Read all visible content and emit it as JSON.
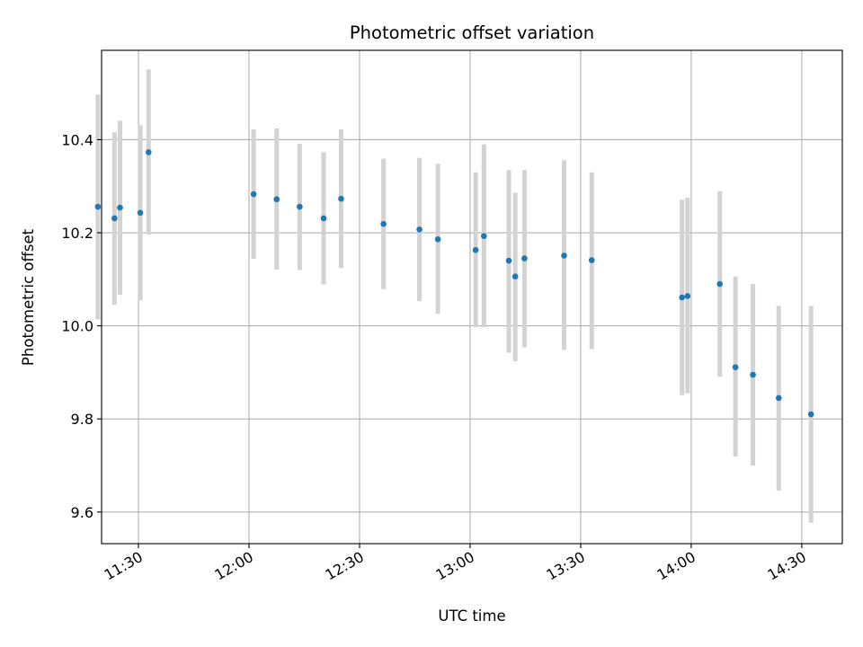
{
  "chart_data": {
    "type": "scatter",
    "title": "Photometric offset variation",
    "xlabel": "UTC time",
    "ylabel": "Photometric offset",
    "x_axis_type": "time",
    "xlim": [
      "11:20",
      "14:41"
    ],
    "ylim": [
      9.532,
      10.592
    ],
    "x_ticks": [
      "11:30",
      "12:00",
      "12:30",
      "13:00",
      "13:30",
      "14:00",
      "14:30"
    ],
    "y_ticks": [
      "9.6",
      "9.8",
      "10.0",
      "10.2",
      "10.4"
    ],
    "grid": true,
    "colors": {
      "point": "#1f77b4",
      "error_bar": "#d3d3d3",
      "grid": "#b0b0b0",
      "axes": "#000000"
    },
    "points": [
      {
        "x": "11:19:00",
        "y": 10.256,
        "y_low": 10.014,
        "y_high": 10.497
      },
      {
        "x": "11:23:30",
        "y": 10.231,
        "y_low": 10.045,
        "y_high": 10.416
      },
      {
        "x": "11:25:00",
        "y": 10.254,
        "y_low": 10.067,
        "y_high": 10.441
      },
      {
        "x": "11:30:30",
        "y": 10.243,
        "y_low": 10.055,
        "y_high": 10.431
      },
      {
        "x": "11:32:45",
        "y": 10.373,
        "y_low": 10.196,
        "y_high": 10.551
      },
      {
        "x": "12:01:15",
        "y": 10.283,
        "y_low": 10.144,
        "y_high": 10.422
      },
      {
        "x": "12:07:30",
        "y": 10.272,
        "y_low": 10.121,
        "y_high": 10.424
      },
      {
        "x": "12:13:45",
        "y": 10.256,
        "y_low": 10.12,
        "y_high": 10.391
      },
      {
        "x": "12:20:15",
        "y": 10.231,
        "y_low": 10.089,
        "y_high": 10.373
      },
      {
        "x": "12:25:00",
        "y": 10.273,
        "y_low": 10.124,
        "y_high": 10.422
      },
      {
        "x": "12:36:30",
        "y": 10.219,
        "y_low": 10.079,
        "y_high": 10.359
      },
      {
        "x": "12:46:15",
        "y": 10.207,
        "y_low": 10.053,
        "y_high": 10.361
      },
      {
        "x": "12:51:15",
        "y": 10.186,
        "y_low": 10.026,
        "y_high": 10.348
      },
      {
        "x": "13:01:30",
        "y": 10.163,
        "y_low": 9.997,
        "y_high": 10.33
      },
      {
        "x": "13:03:45",
        "y": 10.193,
        "y_low": 9.997,
        "y_high": 10.39
      },
      {
        "x": "13:10:30",
        "y": 10.14,
        "y_low": 9.942,
        "y_high": 10.335
      },
      {
        "x": "13:12:15",
        "y": 10.106,
        "y_low": 9.924,
        "y_high": 10.286
      },
      {
        "x": "13:14:45",
        "y": 10.145,
        "y_low": 9.954,
        "y_high": 10.335
      },
      {
        "x": "13:25:30",
        "y": 10.151,
        "y_low": 9.948,
        "y_high": 10.356
      },
      {
        "x": "13:33:00",
        "y": 10.141,
        "y_low": 9.95,
        "y_high": 10.33
      },
      {
        "x": "13:57:30",
        "y": 10.061,
        "y_low": 9.851,
        "y_high": 10.271
      },
      {
        "x": "13:59:00",
        "y": 10.064,
        "y_low": 9.855,
        "y_high": 10.275
      },
      {
        "x": "14:07:45",
        "y": 10.09,
        "y_low": 9.891,
        "y_high": 10.289
      },
      {
        "x": "14:12:00",
        "y": 9.911,
        "y_low": 9.719,
        "y_high": 10.106
      },
      {
        "x": "14:16:45",
        "y": 9.895,
        "y_low": 9.7,
        "y_high": 10.09
      },
      {
        "x": "14:23:45",
        "y": 9.845,
        "y_low": 9.646,
        "y_high": 10.043
      },
      {
        "x": "14:32:30",
        "y": 9.81,
        "y_low": 9.577,
        "y_high": 10.043
      }
    ]
  }
}
